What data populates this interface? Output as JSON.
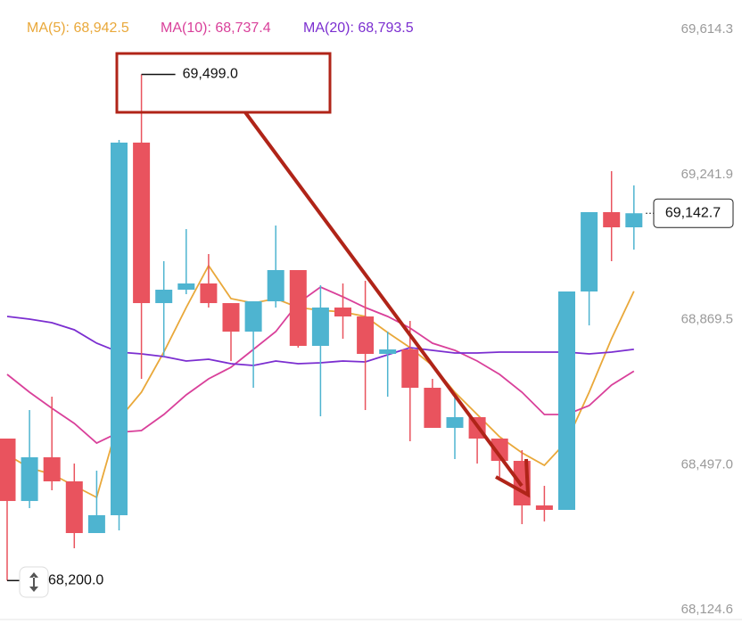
{
  "chart_data": {
    "type": "candlestick",
    "up_color": "#4eb4d0",
    "down_color": "#e9535e",
    "open": [
      68564.4,
      68404.2,
      68516.4,
      68454.6,
      68321.9,
      68367.7,
      69324.0,
      68912.1,
      68946.5,
      68962.5,
      68912.1,
      68838.9,
      68916.7,
      68996.8,
      68802.3,
      68900.7,
      68877.8,
      68781.7,
      68793.2,
      68694.8,
      68591.9,
      68619.3,
      68564.4,
      68507.2,
      68392.8,
      68381.4,
      68941.9,
      69145.5,
      69106.6
    ],
    "high": [
      68564.4,
      68637.6,
      68671.9,
      68500.3,
      68482.0,
      69330.8,
      69499.0,
      69019.7,
      69102.0,
      69038.0,
      68912.1,
      68916.7,
      69111.2,
      68996.8,
      68957.9,
      68962.5,
      68969.3,
      68838.9,
      68866.4,
      68717.7,
      68671.9,
      68619.3,
      68564.4,
      68534.7,
      68443.1,
      68941.9,
      69145.5,
      69250.7,
      69214.1
    ],
    "low": [
      68200.0,
      68385.9,
      68431.7,
      68282.9,
      68321.9,
      68328.8,
      68717.7,
      68774.9,
      68935.0,
      68900.7,
      68763.4,
      68694.8,
      68900.7,
      68797.8,
      68621.6,
      68820.6,
      68637.6,
      68671.9,
      68557.5,
      68591.9,
      68511.8,
      68500.3,
      68466.0,
      68344.8,
      68351.7,
      68381.4,
      68854.9,
      69019.7,
      69049.4
    ],
    "close": [
      68404.2,
      68516.4,
      68454.6,
      68321.9,
      68367.7,
      69324.0,
      68912.1,
      68946.5,
      68962.5,
      68912.1,
      68838.9,
      68916.7,
      68996.8,
      68802.3,
      68900.7,
      68877.8,
      68781.7,
      68793.2,
      68694.8,
      68591.9,
      68619.3,
      68564.4,
      68507.2,
      68392.8,
      68381.4,
      68941.9,
      69145.5,
      69106.6,
      69142.7
    ],
    "series": [
      {
        "name": "MA(5):",
        "color": "#e9a83a",
        "latest": {
          "value": 68942.5,
          "label": "68,942.5"
        },
        "values": [
          68523.2,
          68488.9,
          68472.9,
          68443.1,
          68413.4,
          68614.7,
          68683.4,
          68786.3,
          68900.7,
          69008.2,
          68923.6,
          68912.1,
          68923.6,
          68900.7,
          68893.8,
          68889.3,
          68877.8,
          68836.6,
          68797.8,
          68752.0,
          68683.4,
          68626.2,
          68569.0,
          68527.8,
          68495.8,
          68557.5,
          68683.4,
          68820.6,
          68942.5
        ]
      },
      {
        "name": "MA(10):",
        "color": "#d9409a",
        "latest": {
          "value": 68737.4,
          "label": "68,737.4"
        },
        "values": [
          68729.1,
          68683.4,
          68642.2,
          68603.3,
          68553.0,
          68580.4,
          68585.0,
          68626.2,
          68676.5,
          68717.7,
          68747.4,
          68793.2,
          68838.9,
          68912.1,
          68953.3,
          68928.2,
          68900.7,
          68877.8,
          68848.1,
          68809.2,
          68790.9,
          68763.4,
          68729.1,
          68683.4,
          68626.2,
          68626.2,
          68649.1,
          68701.7,
          68737.4
        ]
      },
      {
        "name": "MA(20):",
        "color": "#7b2ed0",
        "latest": {
          "value": 68793.5,
          "label": "68,793.5"
        },
        "values": [
          68877.8,
          68871.0,
          68861.8,
          68843.5,
          68809.2,
          68786.3,
          68781.7,
          68774.9,
          68763.4,
          68768.0,
          68756.6,
          68752.0,
          68763.4,
          68756.6,
          68758.9,
          68763.4,
          68761.2,
          68779.5,
          68797.8,
          68790.9,
          68784.0,
          68784.0,
          68786.3,
          68786.3,
          68786.3,
          68786.3,
          68781.7,
          68786.3,
          68793.5
        ]
      }
    ],
    "ylim": [
      68100.0,
      69690.0
    ],
    "yticks": [
      {
        "value": 68124.6,
        "label": "68,124.6"
      },
      {
        "value": 68497.0,
        "label": "68,497.0"
      },
      {
        "value": 68869.5,
        "label": "68,869.5"
      },
      {
        "value": 69241.9,
        "label": "69,241.9"
      },
      {
        "value": 69614.3,
        "label": "69,614.3"
      }
    ],
    "high_label": {
      "value": 69499.0,
      "label": "69,499.0"
    },
    "low_label": {
      "value": 68200.0,
      "label": "68,200.0"
    },
    "last_price": {
      "value": 69142.7,
      "label": "69,142.7"
    }
  }
}
